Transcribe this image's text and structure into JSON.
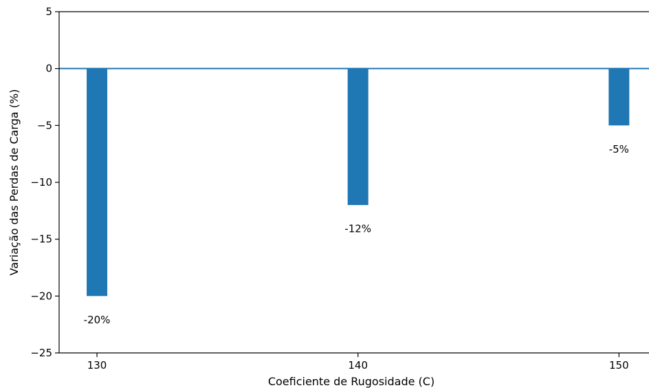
{
  "chart_data": {
    "type": "bar",
    "categories": [
      "130",
      "140",
      "150"
    ],
    "x": [
      130,
      140,
      150
    ],
    "values": [
      -20,
      -12,
      -5
    ],
    "data_labels": [
      "-20%",
      "-12%",
      "-5%"
    ],
    "title": "",
    "xlabel": "Coeficiente de Rugosidade (C)",
    "ylabel": "Variação das Perdas de Carga (%)",
    "ylim": [
      -25,
      5
    ],
    "yticks": [
      5,
      0,
      -5,
      -10,
      -15,
      -20,
      -25
    ],
    "yticklabels": [
      "5",
      "0",
      "−5",
      "−10",
      "−15",
      "−20",
      "−25"
    ],
    "xticklabels": [
      "130",
      "140",
      "150"
    ],
    "reference_line": {
      "y": 0
    },
    "colors": {
      "bar": "#1f77b4",
      "zero_line": "#1f77b4",
      "axis": "#000000"
    },
    "grid": false,
    "legend": "none"
  }
}
